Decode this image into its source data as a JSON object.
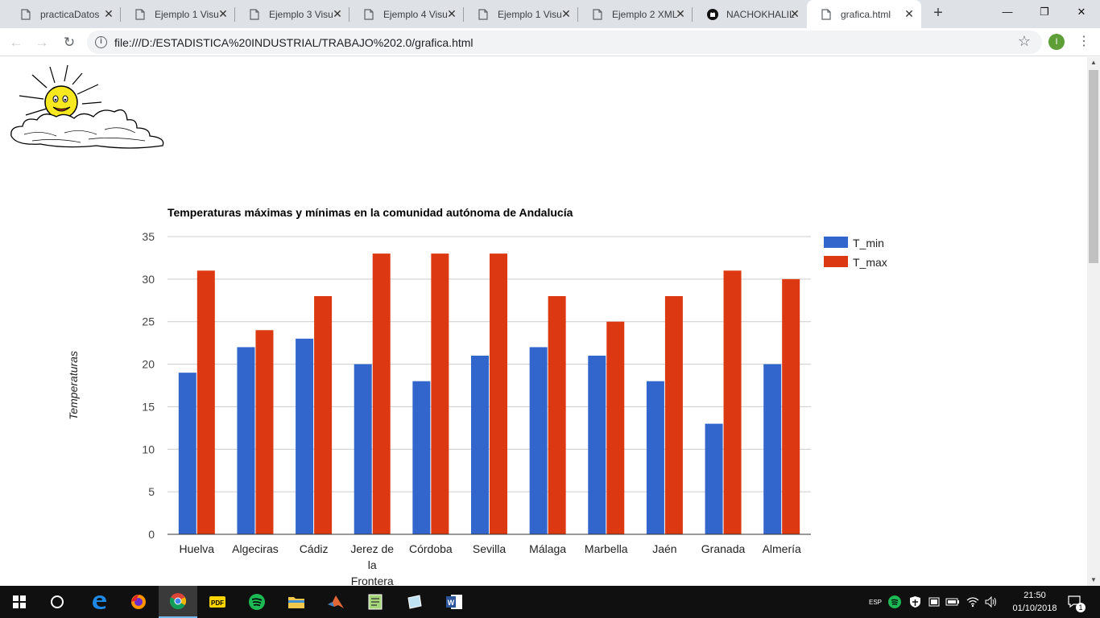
{
  "browser": {
    "tabs": [
      {
        "title": "practicaDatos",
        "icon": "page-icon",
        "active": false
      },
      {
        "title": "Ejemplo 1 Visu",
        "icon": "page-icon",
        "active": false
      },
      {
        "title": "Ejemplo 3 Visu",
        "icon": "page-icon",
        "active": false
      },
      {
        "title": "Ejemplo 4 Visu",
        "icon": "page-icon",
        "active": false
      },
      {
        "title": "Ejemplo 1 Visu",
        "icon": "page-icon",
        "active": false
      },
      {
        "title": "Ejemplo 2 XML",
        "icon": "page-icon",
        "active": false
      },
      {
        "title": "NACHOKHALIL",
        "icon": "github-icon",
        "active": false
      },
      {
        "title": "grafica.html",
        "icon": "page-icon",
        "active": true
      }
    ],
    "url": "file:///D:/ESTADISTICA%20INDUSTRIAL/TRABAJO%202.0/grafica.html",
    "profile_initial": "I"
  },
  "chart_data": {
    "type": "bar",
    "title": "Temperaturas máximas y mínimas en la comunidad autónoma de Andalucía",
    "ylabel": "Temperaturas",
    "xlabel": "",
    "ylim": [
      0,
      35
    ],
    "yticks": [
      "0",
      "5",
      "10",
      "15",
      "20",
      "25",
      "30",
      "35"
    ],
    "categories": [
      "Huelva",
      "Algeciras",
      "Cádiz",
      "Jerez de la Frontera",
      "Córdoba",
      "Sevilla",
      "Málaga",
      "Marbella",
      "Jaén",
      "Granada",
      "Almería"
    ],
    "series": [
      {
        "name": "T_min",
        "color": "#3366cc",
        "values": [
          19,
          22,
          23,
          20,
          18,
          21,
          22,
          21,
          18,
          13,
          20
        ]
      },
      {
        "name": "T_max",
        "color": "#dc3912",
        "values": [
          31,
          24,
          28,
          33,
          33,
          33,
          28,
          25,
          28,
          31,
          30
        ]
      }
    ],
    "legend": "right",
    "grid": true
  },
  "taskbar": {
    "apps": [
      "windows-start-icon",
      "cortana-icon",
      "edge-icon",
      "firefox-icon",
      "chrome-icon",
      "pdf-icon",
      "spotify-icon",
      "file-explorer-icon",
      "matlab-icon",
      "notepad-icon",
      "app-icon",
      "word-icon"
    ],
    "time": "21:50",
    "date": "01/10/2018",
    "notification_count": "1"
  }
}
